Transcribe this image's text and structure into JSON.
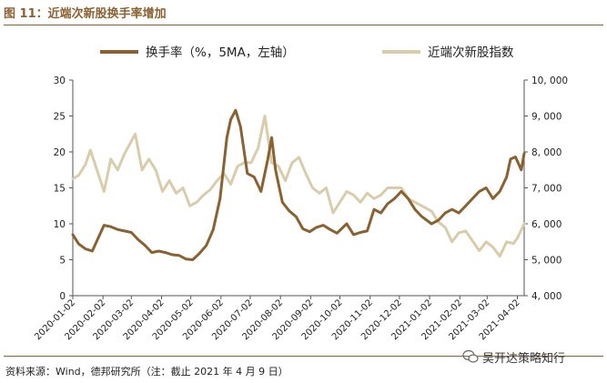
{
  "figure": {
    "title": "图 11：近端次新股换手率增加",
    "source": "资料来源：Wind，德邦研究所（注：截止 2021 年 4 月 9 日）",
    "watermark": "吴开达策略知行"
  },
  "chart_data": {
    "type": "line",
    "legend": [
      {
        "name": "换手率（%，5MA，左轴）",
        "color": "#8a6131"
      },
      {
        "name": "近端次新股指数",
        "color": "#d9ccaa"
      }
    ],
    "legend_position": "top",
    "x_tick_labels": [
      "2020-01-02",
      "2020-02-02",
      "2020-03-02",
      "2020-04-02",
      "2020-05-02",
      "2020-06-02",
      "2020-07-02",
      "2020-08-02",
      "2020-09-02",
      "2020-10-02",
      "2020-11-02",
      "2020-12-02",
      "2021-01-02",
      "2021-02-02",
      "2021-03-02",
      "2021-04-02"
    ],
    "xlim": [
      "2020-01-02",
      "2021-04-09"
    ],
    "y_left": {
      "ylim": [
        0,
        30
      ],
      "ticks": [
        0,
        5,
        10,
        15,
        20,
        25,
        30
      ],
      "labels": [
        "0",
        "5",
        "10",
        "15",
        "20",
        "25",
        "30"
      ]
    },
    "y_right": {
      "ylim": [
        4000,
        10000
      ],
      "ticks": [
        4000,
        5000,
        6000,
        7000,
        8000,
        9000,
        10000
      ],
      "labels": [
        "4, 000",
        "5, 000",
        "6, 000",
        "7, 000",
        "8, 000",
        "9, 000",
        "10, 000"
      ]
    },
    "grid": false,
    "series": [
      {
        "name": "换手率（%，5MA，左轴）",
        "axis": "left",
        "color": "#8a6131",
        "points": [
          [
            "2020-01-02",
            8.5
          ],
          [
            "2020-01-08",
            7.2
          ],
          [
            "2020-01-15",
            6.5
          ],
          [
            "2020-01-22",
            6.2
          ],
          [
            "2020-02-03",
            9.8
          ],
          [
            "2020-02-10",
            9.6
          ],
          [
            "2020-02-17",
            9.2
          ],
          [
            "2020-02-24",
            9.0
          ],
          [
            "2020-03-02",
            8.8
          ],
          [
            "2020-03-09",
            7.8
          ],
          [
            "2020-03-16",
            7.0
          ],
          [
            "2020-03-23",
            6.0
          ],
          [
            "2020-03-30",
            6.2
          ],
          [
            "2020-04-06",
            6.0
          ],
          [
            "2020-04-13",
            5.7
          ],
          [
            "2020-04-20",
            5.6
          ],
          [
            "2020-04-27",
            5.1
          ],
          [
            "2020-05-04",
            5.0
          ],
          [
            "2020-05-11",
            5.9
          ],
          [
            "2020-05-18",
            7.0
          ],
          [
            "2020-05-25",
            9.2
          ],
          [
            "2020-06-01",
            13.5
          ],
          [
            "2020-06-08",
            22.0
          ],
          [
            "2020-06-12",
            24.5
          ],
          [
            "2020-06-17",
            25.8
          ],
          [
            "2020-06-22",
            23.5
          ],
          [
            "2020-06-29",
            17.0
          ],
          [
            "2020-07-06",
            16.5
          ],
          [
            "2020-07-13",
            14.5
          ],
          [
            "2020-07-20",
            19.0
          ],
          [
            "2020-07-24",
            22.0
          ],
          [
            "2020-07-28",
            17.5
          ],
          [
            "2020-08-04",
            13.0
          ],
          [
            "2020-08-11",
            11.8
          ],
          [
            "2020-08-18",
            11.0
          ],
          [
            "2020-08-25",
            9.3
          ],
          [
            "2020-09-01",
            8.9
          ],
          [
            "2020-09-08",
            9.5
          ],
          [
            "2020-09-15",
            9.8
          ],
          [
            "2020-09-22",
            9.2
          ],
          [
            "2020-09-29",
            8.7
          ],
          [
            "2020-10-09",
            10.0
          ],
          [
            "2020-10-16",
            8.5
          ],
          [
            "2020-10-23",
            8.8
          ],
          [
            "2020-10-30",
            9.0
          ],
          [
            "2020-11-06",
            12.0
          ],
          [
            "2020-11-13",
            11.5
          ],
          [
            "2020-11-20",
            12.8
          ],
          [
            "2020-11-27",
            13.5
          ],
          [
            "2020-12-04",
            14.5
          ],
          [
            "2020-12-11",
            13.5
          ],
          [
            "2020-12-18",
            12.0
          ],
          [
            "2020-12-25",
            11.0
          ],
          [
            "2021-01-04",
            10.0
          ],
          [
            "2021-01-11",
            10.5
          ],
          [
            "2021-01-18",
            11.5
          ],
          [
            "2021-01-25",
            12.0
          ],
          [
            "2021-02-01",
            11.5
          ],
          [
            "2021-02-08",
            12.5
          ],
          [
            "2021-02-22",
            14.5
          ],
          [
            "2021-03-01",
            15.0
          ],
          [
            "2021-03-08",
            13.5
          ],
          [
            "2021-03-15",
            14.5
          ],
          [
            "2021-03-22",
            16.5
          ],
          [
            "2021-03-26",
            19.0
          ],
          [
            "2021-03-31",
            19.3
          ],
          [
            "2021-04-06",
            17.5
          ],
          [
            "2021-04-09",
            19.8
          ]
        ]
      },
      {
        "name": "近端次新股指数",
        "axis": "right",
        "color": "#d9ccaa",
        "points": [
          [
            "2020-01-02",
            7250
          ],
          [
            "2020-01-08",
            7350
          ],
          [
            "2020-01-15",
            7650
          ],
          [
            "2020-01-20",
            8050
          ],
          [
            "2020-02-03",
            6900
          ],
          [
            "2020-02-10",
            7800
          ],
          [
            "2020-02-17",
            7500
          ],
          [
            "2020-02-24",
            7950
          ],
          [
            "2020-03-02",
            8300
          ],
          [
            "2020-03-06",
            8500
          ],
          [
            "2020-03-13",
            7500
          ],
          [
            "2020-03-20",
            7800
          ],
          [
            "2020-03-27",
            7500
          ],
          [
            "2020-04-03",
            6900
          ],
          [
            "2020-04-10",
            7200
          ],
          [
            "2020-04-17",
            6850
          ],
          [
            "2020-04-24",
            7000
          ],
          [
            "2020-05-01",
            6500
          ],
          [
            "2020-05-08",
            6600
          ],
          [
            "2020-05-15",
            6800
          ],
          [
            "2020-05-22",
            6950
          ],
          [
            "2020-05-29",
            7200
          ],
          [
            "2020-06-05",
            7400
          ],
          [
            "2020-06-12",
            7100
          ],
          [
            "2020-06-19",
            7600
          ],
          [
            "2020-06-26",
            7700
          ],
          [
            "2020-07-03",
            7700
          ],
          [
            "2020-07-10",
            8100
          ],
          [
            "2020-07-17",
            9000
          ],
          [
            "2020-07-24",
            7700
          ],
          [
            "2020-07-31",
            7600
          ],
          [
            "2020-08-07",
            7200
          ],
          [
            "2020-08-14",
            7700
          ],
          [
            "2020-08-21",
            7850
          ],
          [
            "2020-08-28",
            7400
          ],
          [
            "2020-09-04",
            7000
          ],
          [
            "2020-09-11",
            6850
          ],
          [
            "2020-09-18",
            7000
          ],
          [
            "2020-09-25",
            6300
          ],
          [
            "2020-10-09",
            6900
          ],
          [
            "2020-10-16",
            6800
          ],
          [
            "2020-10-23",
            6600
          ],
          [
            "2020-10-30",
            6850
          ],
          [
            "2020-11-06",
            6700
          ],
          [
            "2020-11-13",
            6800
          ],
          [
            "2020-11-20",
            7000
          ],
          [
            "2020-11-27",
            7000
          ],
          [
            "2020-12-04",
            7000
          ],
          [
            "2020-12-11",
            6700
          ],
          [
            "2020-12-18",
            6600
          ],
          [
            "2020-12-25",
            6500
          ],
          [
            "2021-01-04",
            6350
          ],
          [
            "2021-01-11",
            6050
          ],
          [
            "2021-01-18",
            5900
          ],
          [
            "2021-01-25",
            5500
          ],
          [
            "2021-02-01",
            5750
          ],
          [
            "2021-02-08",
            5800
          ],
          [
            "2021-02-22",
            5250
          ],
          [
            "2021-03-01",
            5500
          ],
          [
            "2021-03-08",
            5350
          ],
          [
            "2021-03-15",
            5100
          ],
          [
            "2021-03-22",
            5500
          ],
          [
            "2021-03-29",
            5450
          ],
          [
            "2021-04-02",
            5600
          ],
          [
            "2021-04-09",
            6000
          ]
        ]
      }
    ]
  }
}
